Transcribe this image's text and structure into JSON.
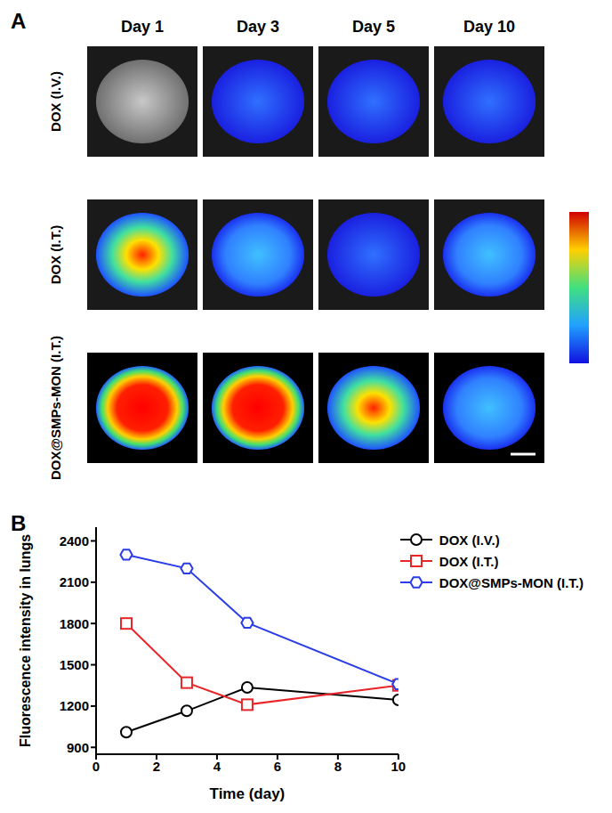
{
  "panel_a": {
    "label": "A",
    "columns": [
      "Day 1",
      "Day 3",
      "Day 5",
      "Day 10"
    ],
    "rows": [
      "DOX (I.V.)",
      "DOX (I.T.)",
      "DOX@SMPs-MON (I.T.)"
    ]
  },
  "panel_b": {
    "label": "B"
  },
  "chart_data": {
    "type": "line",
    "x_label": "Time (day)",
    "y_label": "Fluorescence intensity in lungs",
    "x": [
      1,
      3,
      5,
      10
    ],
    "xlim": [
      0,
      10
    ],
    "xticks": [
      0,
      2,
      4,
      6,
      8,
      10
    ],
    "ylim": [
      850,
      2500
    ],
    "yticks": [
      900,
      1200,
      1500,
      1800,
      2100,
      2400
    ],
    "legend": "upper right",
    "series": [
      {
        "name": "DOX (I.V.)",
        "color": "#000000",
        "marker": "circle",
        "values": [
          1010,
          1165,
          1335,
          1245
        ]
      },
      {
        "name": "DOX (I.T.)",
        "color": "#e8262a",
        "marker": "square",
        "values": [
          1800,
          1370,
          1210,
          1350
        ]
      },
      {
        "name": "DOX@SMPs-MON (I.T.)",
        "color": "#2b3de8",
        "marker": "hexagon",
        "values": [
          2300,
          2200,
          1805,
          1360
        ]
      }
    ]
  }
}
